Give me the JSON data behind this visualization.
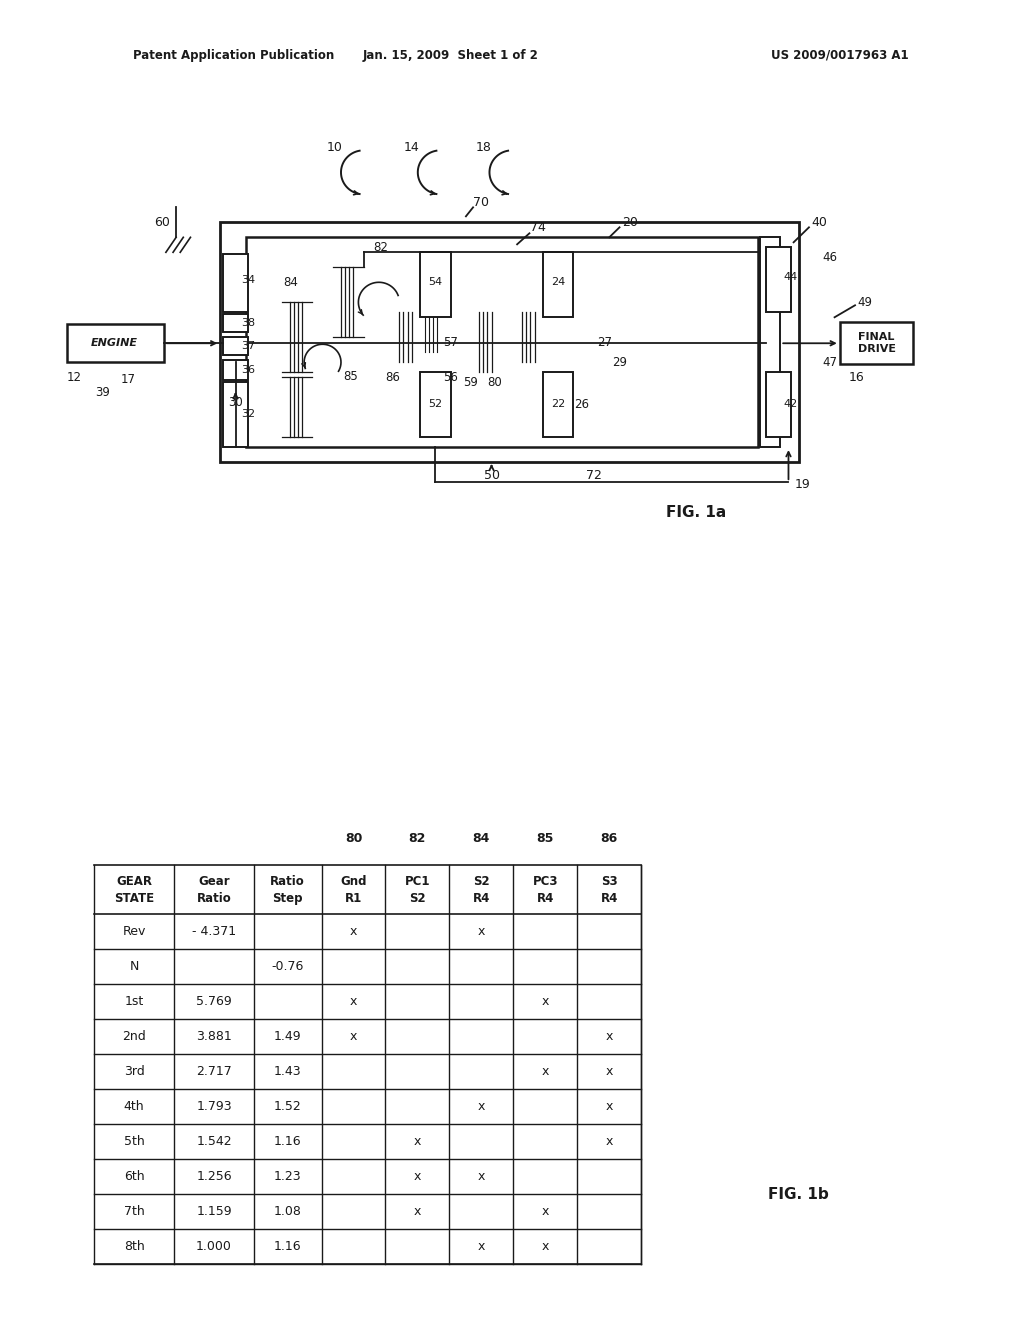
{
  "bg_color": "#ffffff",
  "header_left": "Patent Application Publication",
  "header_mid": "Jan. 15, 2009  Sheet 1 of 2",
  "header_right": "US 2009/0017963 A1",
  "fig1a_label": "FIG. 1a",
  "fig1b_label": "FIG. 1b",
  "table_top_labels": [
    "80",
    "82",
    "84",
    "85",
    "86"
  ],
  "table_header": [
    "GEAR\nSTATE",
    "Gear\nRatio",
    "Ratio\nStep",
    "Gnd\nR1",
    "PC1\nS2",
    "S2\nR4",
    "PC3\nR4",
    "S3\nR4"
  ],
  "table_rows": [
    [
      "Rev",
      "- 4.371",
      "",
      "x",
      "",
      "x",
      "",
      ""
    ],
    [
      "N",
      "",
      "-0.76",
      "",
      "",
      "",
      "",
      ""
    ],
    [
      "1st",
      "5.769",
      "",
      "x",
      "",
      "",
      "x",
      ""
    ],
    [
      "2nd",
      "3.881",
      "1.49",
      "x",
      "",
      "",
      "",
      "x"
    ],
    [
      "3rd",
      "2.717",
      "1.43",
      "",
      "",
      "",
      "x",
      "x"
    ],
    [
      "4th",
      "1.793",
      "1.52",
      "",
      "",
      "x",
      "",
      "x"
    ],
    [
      "5th",
      "1.542",
      "1.16",
      "",
      "x",
      "",
      "",
      "x"
    ],
    [
      "6th",
      "1.256",
      "1.23",
      "",
      "x",
      "x",
      "",
      ""
    ],
    [
      "7th",
      "1.159",
      "1.08",
      "",
      "x",
      "",
      "x",
      ""
    ],
    [
      "8th",
      "1.000",
      "1.16",
      "",
      "",
      "x",
      "x",
      ""
    ]
  ]
}
